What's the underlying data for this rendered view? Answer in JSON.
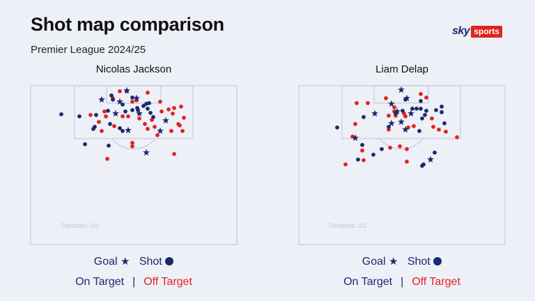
{
  "title": "Shot map comparison",
  "subtitle": "Premier League 2024/25",
  "logo": {
    "sky": "sky",
    "sports": "sports"
  },
  "legend": {
    "goal_label": "Goal",
    "shot_label": "Shot",
    "on_target_label": "On Target",
    "separator": "|",
    "off_target_label": "Off Target"
  },
  "colors": {
    "on_target": "#1a2a6c",
    "off_target": "#e2221f",
    "pitch_line": "#c7cbdc",
    "background": "#eef0f7"
  },
  "players": [
    {
      "name": "Nicolas Jackson",
      "penalties": "Penalties: 0/0"
    },
    {
      "name": "Liam Delap",
      "penalties": "Penalties: 2/2"
    }
  ],
  "chart_data": [
    {
      "type": "scatter",
      "title": "Nicolas Jackson",
      "legend_placement": "bottom",
      "series": [
        {
          "name": "Goal",
          "points": [
            [
              146,
              143
            ],
            [
              182,
              130
            ],
            [
              172,
              146
            ],
            [
              196,
              141
            ],
            [
              166,
              163
            ],
            [
              200,
              163
            ],
            [
              238,
              173
            ],
            [
              230,
              188
            ],
            [
              184,
              187
            ],
            [
              210,
              219
            ]
          ]
        },
        {
          "name": "On Target",
          "points": [
            [
              88,
              164
            ],
            [
              114,
              167
            ],
            [
              138,
              165
            ],
            [
              136,
              182
            ],
            [
              134,
              185
            ],
            [
              155,
              159
            ],
            [
              158,
              178
            ],
            [
              162,
              143
            ],
            [
              176,
              150
            ],
            [
              180,
              160
            ],
            [
              190,
              158
            ],
            [
              198,
              158
            ],
            [
              206,
              152
            ],
            [
              210,
              149
            ],
            [
              214,
              148
            ],
            [
              212,
              156
            ],
            [
              216,
              162
            ],
            [
              220,
              168
            ],
            [
              172,
              184
            ],
            [
              176,
              188
            ],
            [
              190,
              140
            ],
            [
              160,
              137
            ],
            [
              122,
              207
            ],
            [
              156,
              209
            ],
            [
              197,
              155
            ]
          ]
        },
        {
          "name": "Off Target",
          "points": [
            [
              172,
              131
            ],
            [
              182,
              131
            ],
            [
              212,
              133
            ],
            [
              162,
              141
            ],
            [
              190,
              146
            ],
            [
              196,
              144
            ],
            [
              230,
              146
            ],
            [
              150,
              160
            ],
            [
              130,
              165
            ],
            [
              152,
              167
            ],
            [
              142,
              175
            ],
            [
              146,
              188
            ],
            [
              164,
              181
            ],
            [
              176,
              167
            ],
            [
              184,
              167
            ],
            [
              200,
              170
            ],
            [
              208,
              178
            ],
            [
              212,
              185
            ],
            [
              218,
              172
            ],
            [
              222,
              182
            ],
            [
              226,
              194
            ],
            [
              232,
              160
            ],
            [
              242,
              157
            ],
            [
              248,
              163
            ],
            [
              250,
              155
            ],
            [
              260,
              153
            ],
            [
              264,
              169
            ],
            [
              258,
              180
            ],
            [
              246,
              188
            ],
            [
              256,
              178
            ],
            [
              262,
              188
            ],
            [
              190,
              205
            ],
            [
              190,
              210
            ],
            [
              154,
              228
            ],
            [
              250,
              221
            ]
          ]
        }
      ]
    },
    {
      "type": "scatter",
      "title": "Liam Delap",
      "legend_placement": "bottom",
      "series": [
        {
          "name": "Goal",
          "points": [
            [
              576,
              129
            ],
            [
              584,
              141
            ],
            [
              562,
              149
            ],
            [
              570,
              160
            ],
            [
              538,
              163
            ],
            [
              590,
              163
            ],
            [
              576,
              175
            ],
            [
              562,
              177
            ],
            [
              582,
              186
            ],
            [
              510,
              198
            ],
            [
              618,
              229
            ]
          ]
        },
        {
          "name": "On Target",
          "points": [
            [
              484,
              183
            ],
            [
              522,
              168
            ],
            [
              558,
              182
            ],
            [
              568,
              163
            ],
            [
              578,
              159
            ],
            [
              592,
              156
            ],
            [
              598,
              156
            ],
            [
              604,
              156
            ],
            [
              612,
              159
            ],
            [
              626,
              158
            ],
            [
              634,
              153
            ],
            [
              634,
              161
            ],
            [
              638,
              177
            ],
            [
              610,
              165
            ],
            [
              606,
              170
            ],
            [
              602,
              188
            ],
            [
              520,
              208
            ],
            [
              536,
              222
            ],
            [
              548,
              214
            ],
            [
              514,
              229
            ],
            [
              624,
              219
            ],
            [
              608,
              236
            ],
            [
              606,
              238
            ],
            [
              604,
              145
            ],
            [
              582,
              143
            ]
          ]
        },
        {
          "name": "Off Target",
          "points": [
            [
              512,
              148
            ],
            [
              528,
              148
            ],
            [
              554,
              141
            ],
            [
              558,
              166
            ],
            [
              566,
              154
            ],
            [
              566,
              160
            ],
            [
              568,
              166
            ],
            [
              582,
              167
            ],
            [
              604,
              135
            ],
            [
              612,
              140
            ],
            [
              620,
              170
            ],
            [
              622,
              182
            ],
            [
              630,
              186
            ],
            [
              640,
              189
            ],
            [
              656,
              197
            ],
            [
              510,
              178
            ],
            [
              506,
              196
            ],
            [
              520,
              216
            ],
            [
              522,
              230
            ],
            [
              496,
              236
            ],
            [
              560,
              212
            ],
            [
              574,
              210
            ],
            [
              584,
              214
            ],
            [
              584,
              232
            ],
            [
              586,
              183
            ],
            [
              594,
              181
            ],
            [
              558,
              186
            ],
            [
              580,
              163
            ]
          ]
        }
      ]
    }
  ]
}
